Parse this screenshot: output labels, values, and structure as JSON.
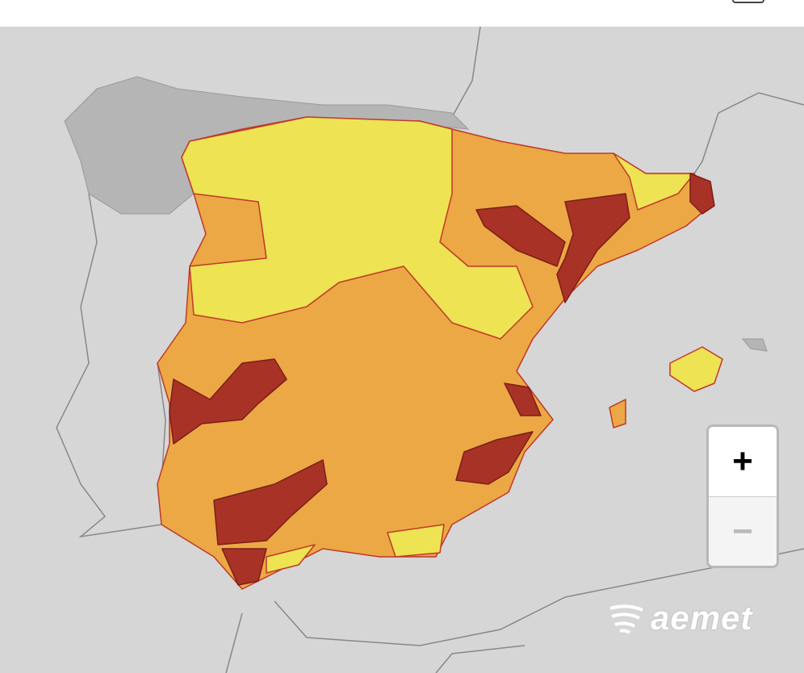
{
  "zoom_controls": {
    "zoom_in": "+",
    "zoom_out": "−"
  },
  "logo": "aemet"
}
